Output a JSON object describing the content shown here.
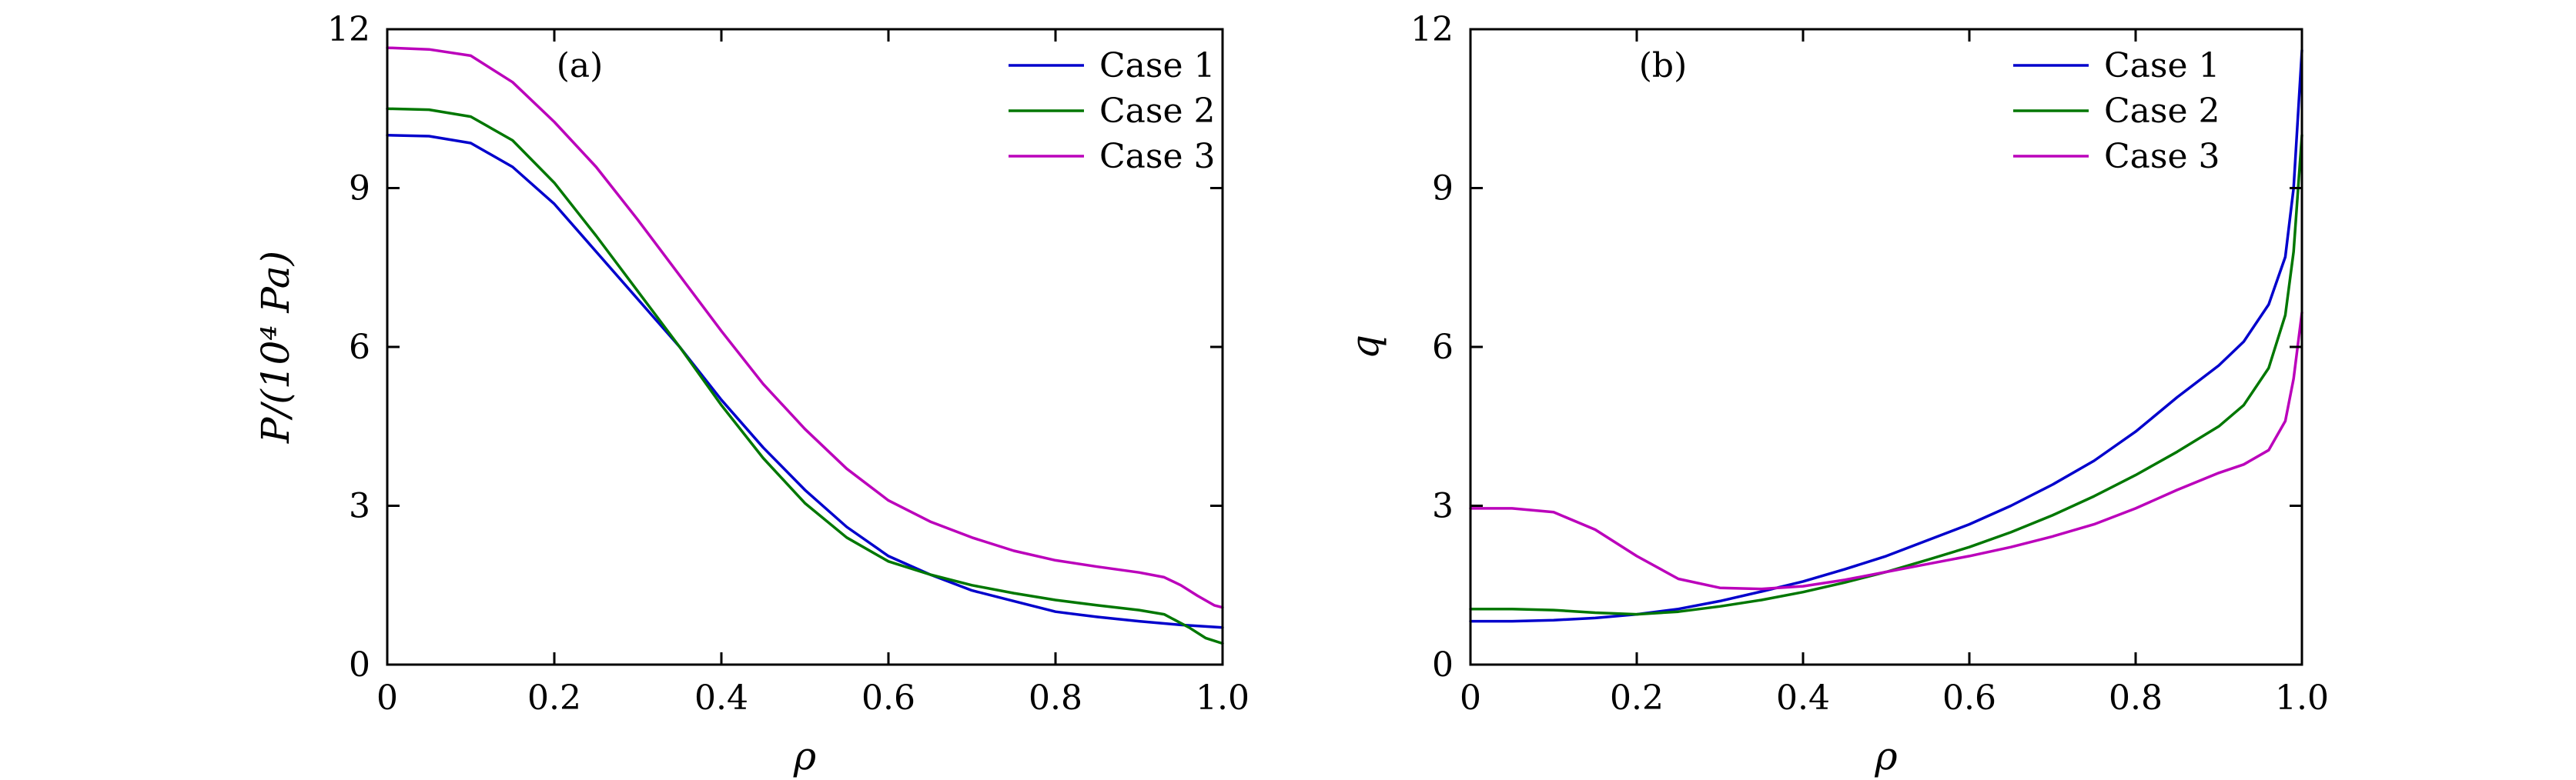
{
  "chart_data": [
    {
      "type": "line",
      "panel_label": "(a)",
      "xlabel": "ρ",
      "ylabel": "P/(10⁴ Pa)",
      "xlim": [
        0,
        1.0
      ],
      "ylim": [
        0,
        12
      ],
      "xticks": [
        0,
        0.2,
        0.4,
        0.6,
        0.8,
        1.0
      ],
      "xtick_labels": [
        "0",
        "0.2",
        "0.4",
        "0.6",
        "0.8",
        "1.0"
      ],
      "yticks": [
        0,
        3,
        6,
        9,
        12
      ],
      "ytick_labels": [
        "0",
        "3",
        "6",
        "9",
        "12"
      ],
      "grid": false,
      "legend_position": "top-right",
      "series": [
        {
          "name": "Case 1",
          "color": "#0000cc",
          "x": [
            0,
            0.05,
            0.1,
            0.15,
            0.2,
            0.25,
            0.3,
            0.35,
            0.4,
            0.45,
            0.5,
            0.55,
            0.6,
            0.65,
            0.7,
            0.75,
            0.8,
            0.85,
            0.9,
            0.95,
            1.0
          ],
          "y": [
            10.0,
            9.98,
            9.85,
            9.4,
            8.7,
            7.8,
            6.9,
            6.0,
            5.0,
            4.1,
            3.3,
            2.6,
            2.05,
            1.7,
            1.4,
            1.2,
            1.0,
            0.9,
            0.82,
            0.75,
            0.7
          ]
        },
        {
          "name": "Case 2",
          "color": "#007700",
          "x": [
            0,
            0.05,
            0.1,
            0.15,
            0.2,
            0.25,
            0.3,
            0.35,
            0.4,
            0.45,
            0.5,
            0.55,
            0.6,
            0.65,
            0.7,
            0.75,
            0.8,
            0.85,
            0.9,
            0.93,
            0.96,
            0.98,
            1.0
          ],
          "y": [
            10.5,
            10.48,
            10.35,
            9.9,
            9.1,
            8.1,
            7.05,
            6.0,
            4.9,
            3.9,
            3.05,
            2.4,
            1.95,
            1.7,
            1.5,
            1.35,
            1.22,
            1.12,
            1.03,
            0.95,
            0.7,
            0.5,
            0.4
          ]
        },
        {
          "name": "Case 3",
          "color": "#bb00bb",
          "x": [
            0,
            0.05,
            0.1,
            0.15,
            0.2,
            0.25,
            0.3,
            0.35,
            0.4,
            0.45,
            0.5,
            0.55,
            0.6,
            0.65,
            0.7,
            0.75,
            0.8,
            0.85,
            0.9,
            0.93,
            0.95,
            0.97,
            0.99,
            1.0
          ],
          "y": [
            11.65,
            11.62,
            11.5,
            11.0,
            10.25,
            9.4,
            8.4,
            7.35,
            6.3,
            5.3,
            4.45,
            3.7,
            3.1,
            2.7,
            2.4,
            2.15,
            1.97,
            1.85,
            1.74,
            1.65,
            1.5,
            1.3,
            1.12,
            1.08
          ]
        }
      ]
    },
    {
      "type": "line",
      "panel_label": "(b)",
      "xlabel": "ρ",
      "ylabel": "q",
      "xlim": [
        0,
        1.0
      ],
      "ylim": [
        0,
        12
      ],
      "xticks": [
        0,
        0.2,
        0.4,
        0.6,
        0.8,
        1.0
      ],
      "xtick_labels": [
        "0",
        "0.2",
        "0.4",
        "0.6",
        "0.8",
        "1.0"
      ],
      "yticks": [
        0,
        3,
        6,
        9,
        12
      ],
      "ytick_labels": [
        "0",
        "3",
        "6",
        "9",
        "12"
      ],
      "grid": false,
      "legend_position": "top-right",
      "series": [
        {
          "name": "Case 1",
          "color": "#0000cc",
          "x": [
            0,
            0.05,
            0.1,
            0.15,
            0.2,
            0.25,
            0.3,
            0.35,
            0.4,
            0.45,
            0.5,
            0.55,
            0.6,
            0.65,
            0.7,
            0.75,
            0.8,
            0.85,
            0.9,
            0.93,
            0.96,
            0.98,
            0.99,
            1.0
          ],
          "y": [
            0.82,
            0.82,
            0.84,
            0.88,
            0.95,
            1.05,
            1.2,
            1.38,
            1.57,
            1.8,
            2.05,
            2.35,
            2.65,
            3.0,
            3.4,
            3.85,
            4.4,
            5.05,
            5.65,
            6.1,
            6.8,
            7.7,
            9.0,
            11.6
          ]
        },
        {
          "name": "Case 2",
          "color": "#007700",
          "x": [
            0,
            0.05,
            0.1,
            0.15,
            0.2,
            0.25,
            0.3,
            0.35,
            0.4,
            0.45,
            0.5,
            0.55,
            0.6,
            0.65,
            0.7,
            0.75,
            0.8,
            0.85,
            0.9,
            0.93,
            0.96,
            0.98,
            0.99,
            1.0
          ],
          "y": [
            1.05,
            1.05,
            1.03,
            0.98,
            0.95,
            1.0,
            1.1,
            1.22,
            1.37,
            1.55,
            1.75,
            1.98,
            2.22,
            2.5,
            2.82,
            3.18,
            3.58,
            4.02,
            4.5,
            4.9,
            5.6,
            6.6,
            7.8,
            10.0
          ]
        },
        {
          "name": "Case 3",
          "color": "#bb00bb",
          "x": [
            0,
            0.05,
            0.1,
            0.15,
            0.2,
            0.25,
            0.3,
            0.35,
            0.4,
            0.45,
            0.5,
            0.55,
            0.6,
            0.65,
            0.7,
            0.75,
            0.8,
            0.85,
            0.9,
            0.93,
            0.96,
            0.98,
            0.99,
            1.0
          ],
          "y": [
            2.95,
            2.95,
            2.88,
            2.55,
            2.05,
            1.62,
            1.45,
            1.43,
            1.48,
            1.6,
            1.75,
            1.9,
            2.05,
            2.22,
            2.42,
            2.65,
            2.95,
            3.3,
            3.62,
            3.78,
            4.05,
            4.6,
            5.4,
            6.65
          ]
        }
      ]
    }
  ]
}
